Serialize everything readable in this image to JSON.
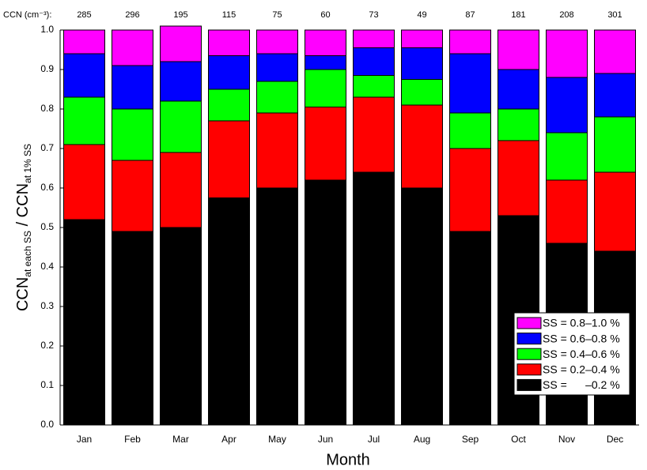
{
  "chart_data": {
    "type": "stacked_bar",
    "categories": [
      "Jan",
      "Feb",
      "Mar",
      "Apr",
      "May",
      "Jun",
      "Jul",
      "Aug",
      "Sep",
      "Oct",
      "Nov",
      "Dec"
    ],
    "series": [
      {
        "name": "SS =      –0.2 %",
        "color": "#000000",
        "values": [
          0.52,
          0.49,
          0.5,
          0.575,
          0.6,
          0.62,
          0.64,
          0.6,
          0.49,
          0.53,
          0.46,
          0.44
        ]
      },
      {
        "name": "SS = 0.2–0.4 %",
        "color": "#ff0000",
        "values": [
          0.19,
          0.18,
          0.19,
          0.195,
          0.19,
          0.185,
          0.19,
          0.21,
          0.21,
          0.19,
          0.16,
          0.2
        ]
      },
      {
        "name": "SS = 0.4–0.6 %",
        "color": "#00ff00",
        "values": [
          0.12,
          0.13,
          0.13,
          0.08,
          0.08,
          0.095,
          0.055,
          0.065,
          0.09,
          0.08,
          0.12,
          0.14
        ]
      },
      {
        "name": "SS = 0.6–0.8 %",
        "color": "#0000ff",
        "values": [
          0.11,
          0.11,
          0.1,
          0.085,
          0.07,
          0.035,
          0.07,
          0.08,
          0.15,
          0.1,
          0.14,
          0.11
        ]
      },
      {
        "name": "SS = 0.8–1.0 %",
        "color": "#ff00ff",
        "values": [
          0.06,
          0.09,
          0.09,
          0.065,
          0.06,
          0.065,
          0.045,
          0.045,
          0.06,
          0.1,
          0.12,
          0.11
        ]
      }
    ],
    "top_labels": {
      "label": "CCN (cm⁻³):",
      "values": [
        285,
        296,
        195,
        115,
        75,
        60,
        73,
        49,
        87,
        181,
        208,
        301
      ]
    },
    "xlabel": "Month",
    "ylabel": {
      "main1": "CCN",
      "sub1": "at each SS",
      "main2": " / CCN",
      "sub2": "at 1% SS"
    },
    "ylim": [
      0,
      1.0
    ],
    "yticks": [
      {
        "value": 0,
        "label": "0.0"
      },
      0.1,
      0.2,
      0.3,
      0.4,
      0.5,
      0.6,
      0.7,
      0.8,
      0.9,
      {
        "value": 1.0,
        "label": "1.0"
      }
    ],
    "legend": "lower right"
  }
}
